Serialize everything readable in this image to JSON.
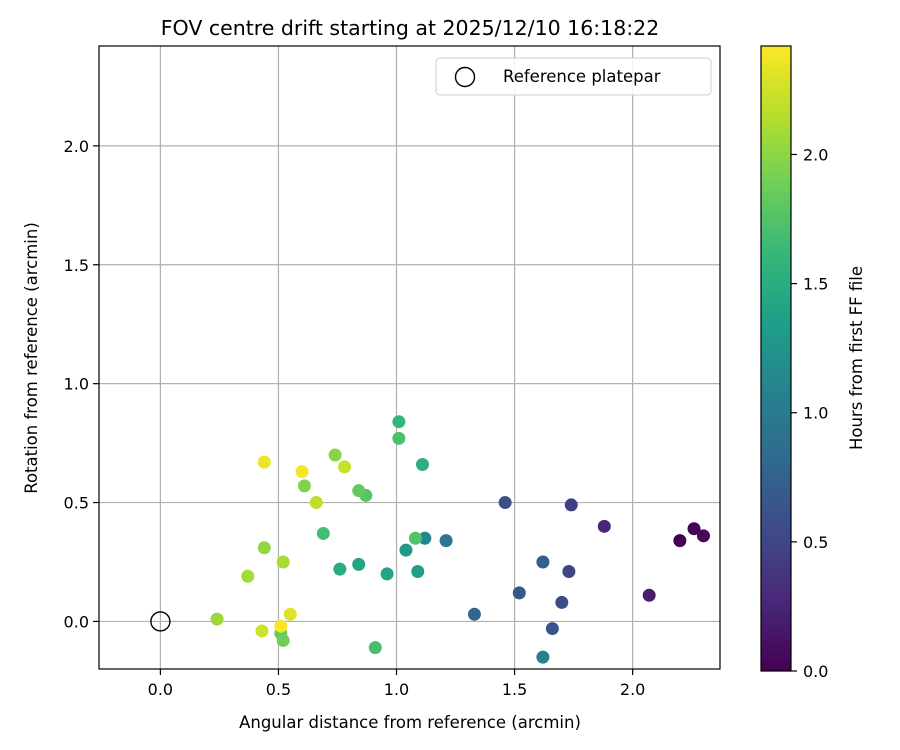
{
  "chart_data": {
    "type": "scatter",
    "title": "FOV centre drift starting at 2025/12/10 16:18:22",
    "xlabel": "Angular distance from reference (arcmin)",
    "ylabel": "Rotation from reference (arcmin)",
    "xlim": [
      -0.26,
      2.37
    ],
    "ylim": [
      -0.2,
      2.42
    ],
    "x_ticks": [
      0.0,
      0.5,
      1.0,
      1.5,
      2.0
    ],
    "y_ticks": [
      0.0,
      0.5,
      1.0,
      1.5,
      2.0
    ],
    "x_tick_labels": [
      "0.0",
      "0.5",
      "1.0",
      "1.5",
      "2.0"
    ],
    "y_tick_labels": [
      "0.0",
      "0.5",
      "1.0",
      "1.5",
      "2.0"
    ],
    "grid": true,
    "legend": {
      "label": "Reference platepar",
      "placement": "top-right"
    },
    "reference_point": {
      "x": 0.0,
      "y": 0.0
    },
    "colorbar": {
      "label": "Hours from first FF file",
      "range": [
        0.0,
        2.42
      ],
      "ticks": [
        0.0,
        0.5,
        1.0,
        1.5,
        2.0
      ],
      "tick_labels": [
        "0.0",
        "0.5",
        "1.0",
        "1.5",
        "2.0"
      ],
      "colormap": "viridis",
      "stops": [
        "#440154",
        "#482878",
        "#3e4a89",
        "#31688e",
        "#26828e",
        "#1f9e89",
        "#35b779",
        "#6ece58",
        "#b5de2b",
        "#fde725"
      ]
    },
    "series": [
      {
        "name": "FOV centre",
        "points": [
          {
            "x": 2.2,
            "y": 0.34,
            "h": 0.0
          },
          {
            "x": 2.26,
            "y": 0.39,
            "h": 0.03
          },
          {
            "x": 2.3,
            "y": 0.36,
            "h": 0.05
          },
          {
            "x": 2.07,
            "y": 0.11,
            "h": 0.2
          },
          {
            "x": 1.88,
            "y": 0.4,
            "h": 0.28
          },
          {
            "x": 1.74,
            "y": 0.49,
            "h": 0.45
          },
          {
            "x": 1.73,
            "y": 0.21,
            "h": 0.5
          },
          {
            "x": 1.7,
            "y": 0.08,
            "h": 0.55
          },
          {
            "x": 1.46,
            "y": 0.5,
            "h": 0.58
          },
          {
            "x": 1.66,
            "y": -0.03,
            "h": 0.62
          },
          {
            "x": 1.52,
            "y": 0.12,
            "h": 0.66
          },
          {
            "x": 1.62,
            "y": 0.25,
            "h": 0.72
          },
          {
            "x": 1.33,
            "y": 0.03,
            "h": 0.8
          },
          {
            "x": 1.21,
            "y": 0.34,
            "h": 0.95
          },
          {
            "x": 1.62,
            "y": -0.15,
            "h": 1.05
          },
          {
            "x": 1.12,
            "y": 0.35,
            "h": 1.1
          },
          {
            "x": 1.04,
            "y": 0.3,
            "h": 1.32
          },
          {
            "x": 1.09,
            "y": 0.21,
            "h": 1.36
          },
          {
            "x": 0.96,
            "y": 0.2,
            "h": 1.42
          },
          {
            "x": 0.84,
            "y": 0.24,
            "h": 1.4
          },
          {
            "x": 0.76,
            "y": 0.22,
            "h": 1.5
          },
          {
            "x": 1.11,
            "y": 0.66,
            "h": 1.52
          },
          {
            "x": 1.01,
            "y": 0.84,
            "h": 1.6
          },
          {
            "x": 0.69,
            "y": 0.37,
            "h": 1.68
          },
          {
            "x": 0.91,
            "y": -0.11,
            "h": 1.7
          },
          {
            "x": 1.08,
            "y": 0.35,
            "h": 1.75
          },
          {
            "x": 1.01,
            "y": 0.77,
            "h": 1.72
          },
          {
            "x": 0.87,
            "y": 0.53,
            "h": 1.78
          },
          {
            "x": 0.84,
            "y": 0.55,
            "h": 1.82
          },
          {
            "x": 0.51,
            "y": -0.05,
            "h": 1.85
          },
          {
            "x": 0.52,
            "y": -0.08,
            "h": 1.88
          },
          {
            "x": 0.61,
            "y": 0.57,
            "h": 1.95
          },
          {
            "x": 0.74,
            "y": 0.7,
            "h": 1.98
          },
          {
            "x": 0.44,
            "y": 0.31,
            "h": 2.02
          },
          {
            "x": 0.24,
            "y": 0.01,
            "h": 2.05
          },
          {
            "x": 0.37,
            "y": 0.19,
            "h": 2.08
          },
          {
            "x": 0.52,
            "y": 0.25,
            "h": 2.1
          },
          {
            "x": 0.66,
            "y": 0.5,
            "h": 2.18
          },
          {
            "x": 0.78,
            "y": 0.65,
            "h": 2.22
          },
          {
            "x": 0.43,
            "y": -0.04,
            "h": 2.25
          },
          {
            "x": 0.55,
            "y": 0.03,
            "h": 2.3
          },
          {
            "x": 0.44,
            "y": 0.67,
            "h": 2.35
          },
          {
            "x": 0.6,
            "y": 0.63,
            "h": 2.38
          },
          {
            "x": 0.51,
            "y": -0.02,
            "h": 2.4
          }
        ]
      }
    ]
  }
}
